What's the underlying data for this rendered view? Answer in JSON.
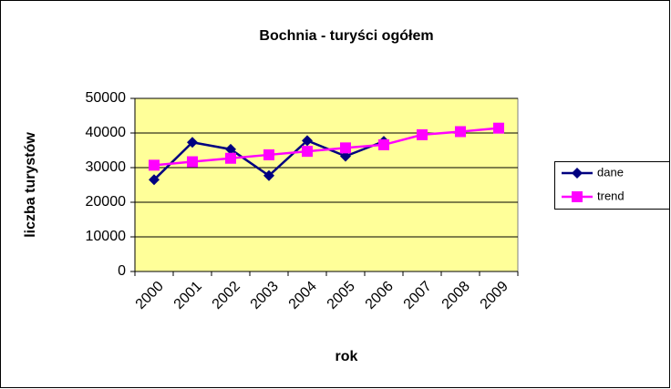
{
  "chart_data": {
    "type": "line",
    "title": "Bochnia - turyści ogółem",
    "x_label": "rok",
    "y_label": "liczba turystów",
    "categories": [
      "2000",
      "2001",
      "2002",
      "2003",
      "2004",
      "2005",
      "2006",
      "2007",
      "2008",
      "2009"
    ],
    "series": [
      {
        "name": "dane",
        "color": "#000080",
        "marker": "diamond",
        "values": [
          26500,
          37300,
          35300,
          27700,
          37800,
          33300,
          37600,
          null,
          null,
          null
        ]
      },
      {
        "name": "trend",
        "color": "#ff00ff",
        "marker": "square",
        "values": [
          30700,
          31700,
          32700,
          33700,
          34700,
          35700,
          36600,
          39500,
          40400,
          41400
        ]
      }
    ],
    "ylim": [
      0,
      50000
    ],
    "yticks": [
      0,
      10000,
      20000,
      30000,
      40000,
      50000
    ],
    "grid": true,
    "legend": "right",
    "plot_background": "#ffff99"
  }
}
